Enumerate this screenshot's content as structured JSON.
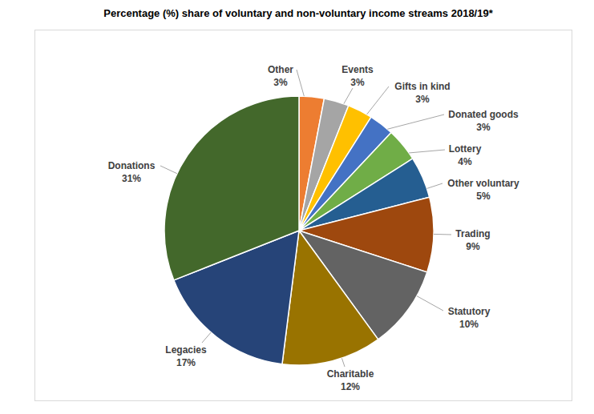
{
  "chart_data": {
    "type": "pie",
    "title": "Percentage (%) share of voluntary and non-voluntary income streams 2018/19*",
    "categories": [
      "Other",
      "Events",
      "Gifts in kind",
      "Donated goods",
      "Lottery",
      "Other voluntary",
      "Trading",
      "Statutory",
      "Charitable",
      "Legacies",
      "Donations"
    ],
    "values": [
      3,
      3,
      3,
      3,
      4,
      5,
      9,
      10,
      12,
      17,
      31
    ],
    "value_labels": [
      "3%",
      "3%",
      "3%",
      "3%",
      "4%",
      "5%",
      "9%",
      "10%",
      "12%",
      "17%",
      "31%"
    ],
    "colors": [
      "#ed7d31",
      "#a5a5a5",
      "#ffc000",
      "#4472c4",
      "#70ad47",
      "#255e91",
      "#9e480e",
      "#636363",
      "#997300",
      "#264478",
      "#43682b"
    ],
    "data_labels": true
  }
}
